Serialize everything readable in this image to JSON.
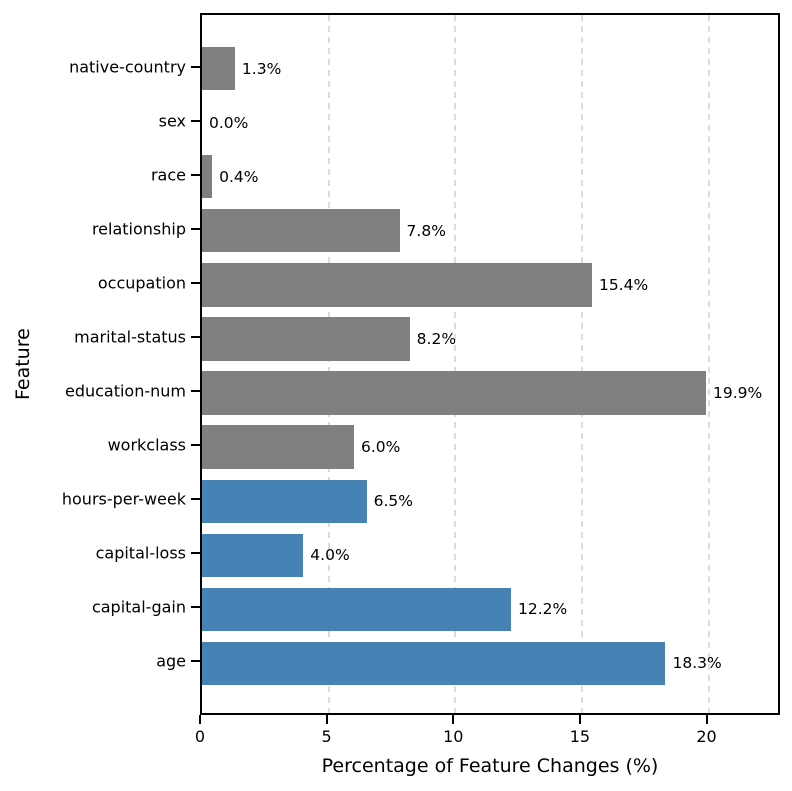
{
  "chart_data": {
    "type": "bar",
    "orientation": "horizontal",
    "title": "",
    "xlabel": "Percentage of Feature Changes (%)",
    "ylabel": "Feature",
    "categories": [
      "native-country",
      "sex",
      "race",
      "relationship",
      "occupation",
      "marital-status",
      "education-num",
      "workclass",
      "hours-per-week",
      "capital-loss",
      "capital-gain",
      "age"
    ],
    "values": [
      1.3,
      0.0,
      0.4,
      7.8,
      15.4,
      8.2,
      19.9,
      6.0,
      6.5,
      4.0,
      12.2,
      18.3
    ],
    "value_labels": [
      "1.3%",
      "0.0%",
      "0.4%",
      "7.8%",
      "15.4%",
      "8.2%",
      "19.9%",
      "6.0%",
      "6.5%",
      "4.0%",
      "12.2%",
      "18.3%"
    ],
    "bar_colors": [
      "#808080",
      "#808080",
      "#808080",
      "#808080",
      "#808080",
      "#808080",
      "#808080",
      "#808080",
      "#4682b4",
      "#4682b4",
      "#4682b4",
      "#4682b4"
    ],
    "colors": {
      "categorical_gray": "#808080",
      "numerical_blue": "#4682b4",
      "gridline": "#dcdcdc",
      "spine": "#000000"
    },
    "xlim": [
      0,
      22.9
    ],
    "xticks": [
      0,
      5,
      10,
      15,
      20
    ],
    "bar_height_fraction": 0.8,
    "grid": "vertical-dashed",
    "legend": "none"
  }
}
